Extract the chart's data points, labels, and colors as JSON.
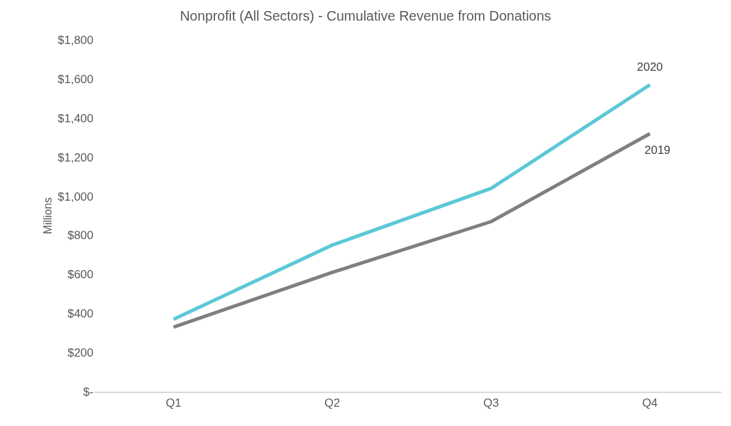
{
  "chart_data": {
    "type": "line",
    "title": "Nonprofit (All Sectors) - Cumulative Revenue from Donations",
    "ylabel": "Millions",
    "categories": [
      "Q1",
      "Q2",
      "Q3",
      "Q4"
    ],
    "series": [
      {
        "name": "2020",
        "color": "#5bc8d6",
        "values": [
          370,
          750,
          1040,
          1570
        ]
      },
      {
        "name": "2019",
        "color": "#7f7f7f",
        "values": [
          330,
          610,
          870,
          1320
        ]
      }
    ],
    "ylim": [
      0,
      1800
    ],
    "yticks": [
      {
        "value": 0,
        "label": "$-"
      },
      {
        "value": 200,
        "label": "$200"
      },
      {
        "value": 400,
        "label": "$400"
      },
      {
        "value": 600,
        "label": "$600"
      },
      {
        "value": 800,
        "label": "$800"
      },
      {
        "value": 1000,
        "label": "$1,000"
      },
      {
        "value": 1200,
        "label": "$1,200"
      },
      {
        "value": 1400,
        "label": "$1,400"
      },
      {
        "value": 1600,
        "label": "$1,600"
      },
      {
        "value": 1800,
        "label": "$1,800"
      }
    ],
    "legend": false,
    "marker": "none",
    "line_style": "solid"
  }
}
